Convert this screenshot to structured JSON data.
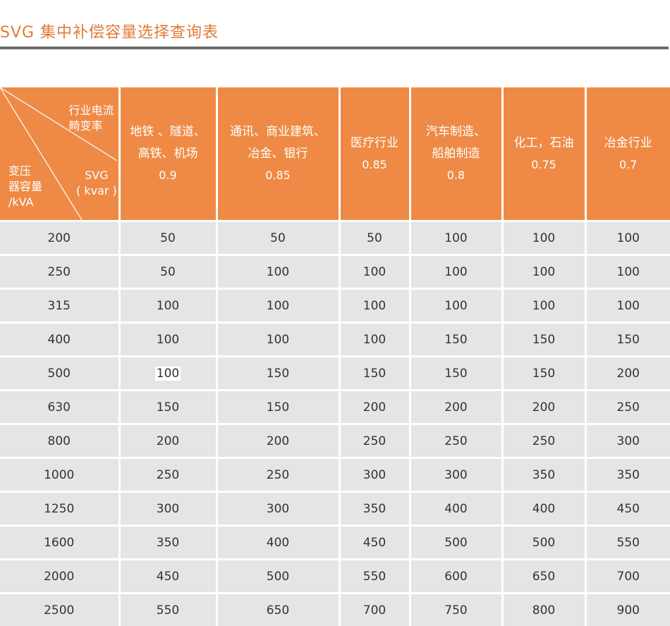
{
  "page": {
    "title": "SVG 集中补偿容量选择查询表"
  },
  "table": {
    "corner": {
      "top": [
        "行业电流",
        "畸变率"
      ],
      "mid": [
        "SVG",
        "( kvar )"
      ],
      "bottom": [
        "变压",
        "器容量",
        "/kVA"
      ]
    },
    "columns": [
      {
        "lines": [
          "地铁 、隧道、",
          "高铁、机场"
        ],
        "coef": "0.9"
      },
      {
        "lines": [
          "通讯、商业建筑、",
          "冶金、银行"
        ],
        "coef": "0.85"
      },
      {
        "lines": [
          "医疗行业"
        ],
        "coef": "0.85"
      },
      {
        "lines": [
          "汽车制造、",
          "船舶制造"
        ],
        "coef": "0.8"
      },
      {
        "lines": [
          "化工，石油"
        ],
        "coef": "0.75"
      },
      {
        "lines": [
          "冶金行业"
        ],
        "coef": "0.7"
      }
    ],
    "rows": [
      [
        "200",
        "50",
        "50",
        "50",
        "100",
        "100",
        "100"
      ],
      [
        "250",
        "50",
        "100",
        "100",
        "100",
        "100",
        "100"
      ],
      [
        "315",
        "100",
        "100",
        "100",
        "100",
        "100",
        "100"
      ],
      [
        "400",
        "100",
        "100",
        "100",
        "150",
        "150",
        "150"
      ],
      [
        "500",
        "100",
        "150",
        "150",
        "150",
        "150",
        "200"
      ],
      [
        "630",
        "150",
        "150",
        "200",
        "200",
        "200",
        "250"
      ],
      [
        "800",
        "200",
        "200",
        "250",
        "250",
        "250",
        "300"
      ],
      [
        "1000",
        "250",
        "250",
        "300",
        "300",
        "350",
        "350"
      ],
      [
        "1250",
        "300",
        "300",
        "350",
        "400",
        "400",
        "450"
      ],
      [
        "1600",
        "350",
        "400",
        "450",
        "500",
        "500",
        "550"
      ],
      [
        "2000",
        "450",
        "500",
        "550",
        "600",
        "650",
        "700"
      ],
      [
        "2500",
        "550",
        "650",
        "700",
        "750",
        "800",
        "900"
      ]
    ]
  }
}
